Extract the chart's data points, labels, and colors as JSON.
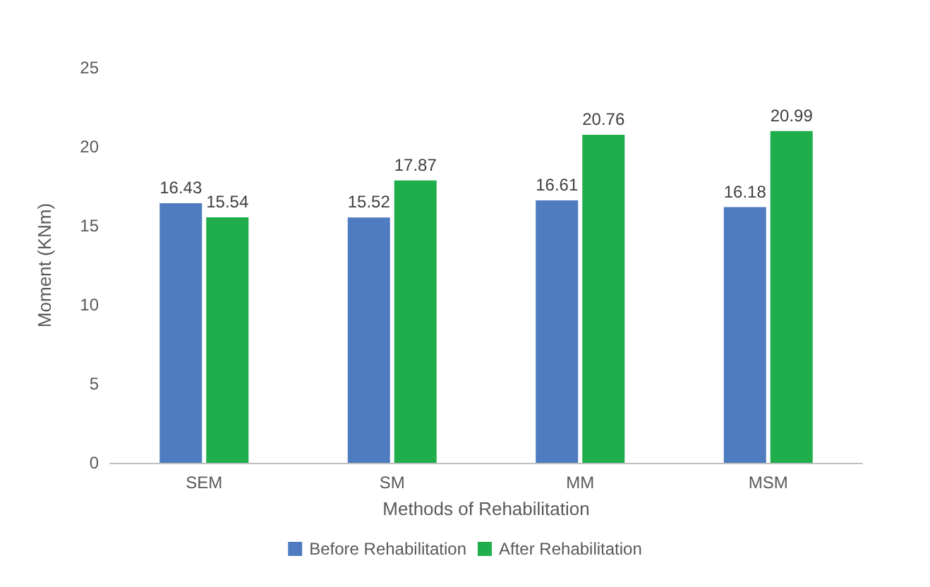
{
  "chart_data": {
    "type": "bar",
    "xlabel": "Methods of Rehabilitation",
    "ylabel": "Moment (KNm)",
    "categories": [
      "SEM",
      "SM",
      "MM",
      "MSM"
    ],
    "series": [
      {
        "name": "Before Rehabilitation",
        "color": "#4f7cc0",
        "values": [
          16.43,
          15.52,
          16.61,
          16.18
        ]
      },
      {
        "name": "After Rehabilitation",
        "color": "#1fae4b",
        "values": [
          15.54,
          17.87,
          20.76,
          20.99
        ]
      }
    ],
    "ylim": [
      0,
      25
    ],
    "yticks": [
      0,
      5,
      10,
      15,
      20,
      25
    ],
    "grid": false,
    "legend": "bottom",
    "data_labels": true
  }
}
